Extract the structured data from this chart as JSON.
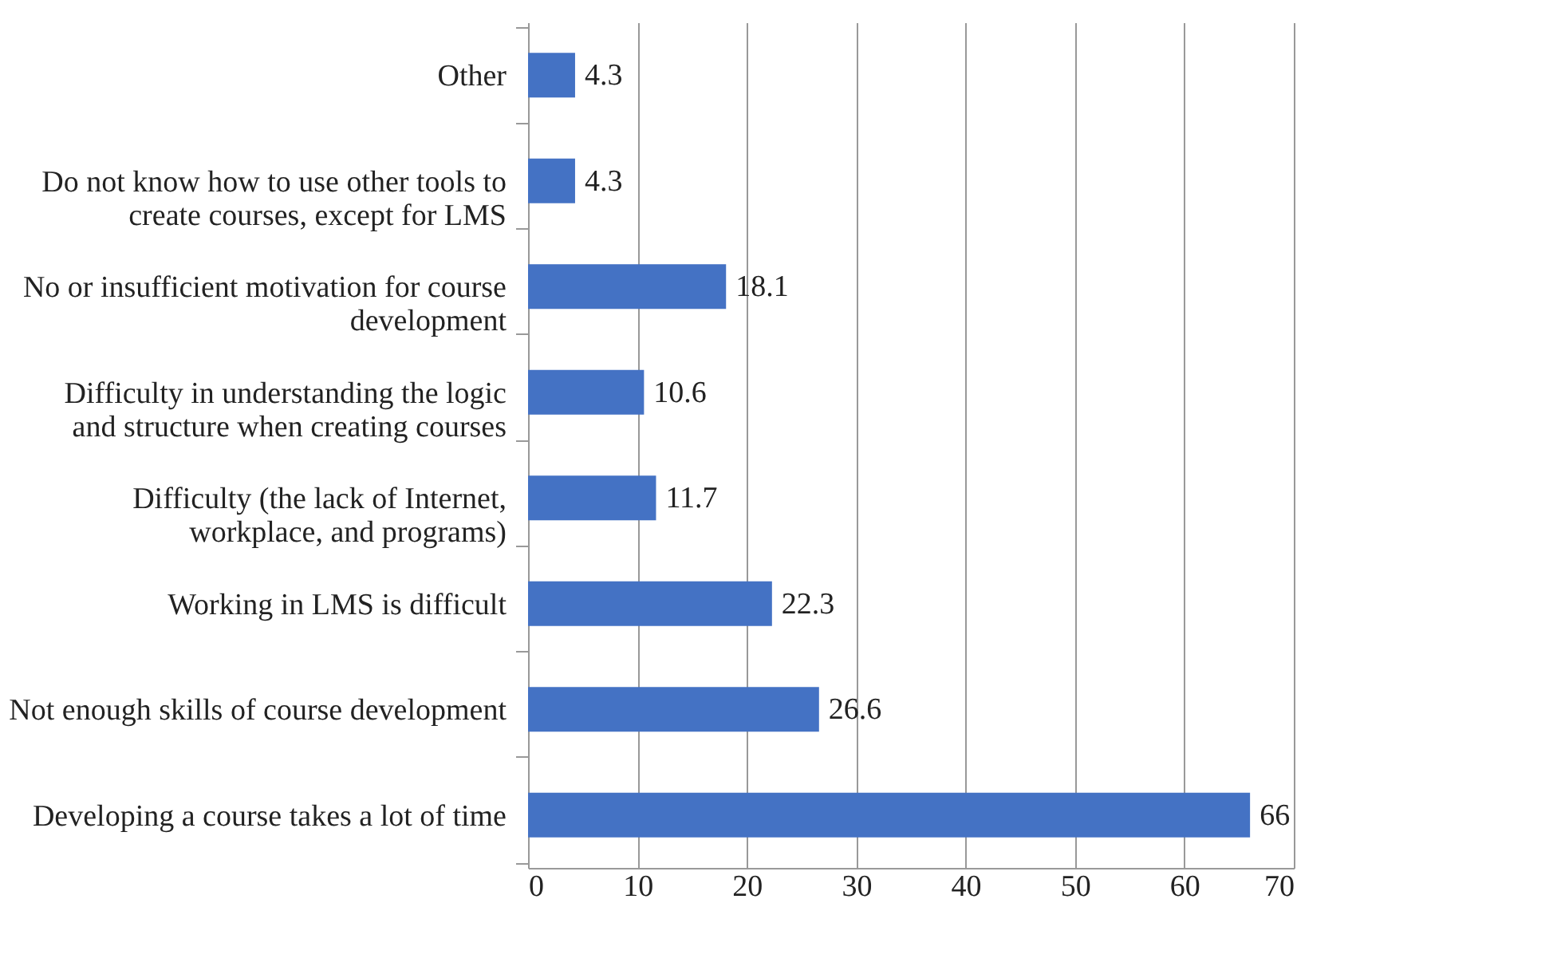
{
  "chart_data": {
    "type": "bar",
    "orientation": "horizontal",
    "categories": [
      "Other",
      "Do not know how to use other tools to create courses, except for LMS",
      "No or insufficient motivation for course development",
      "Difficulty in understanding the logic and structure when creating courses",
      "Difficulty (the lack of Internet, workplace, and programs)",
      "Working in LMS is difficult",
      "Not enough skills of course development",
      "Developing a course takes a lot of time"
    ],
    "values": [
      4.3,
      4.3,
      18.1,
      10.6,
      11.7,
      22.3,
      26.6,
      66
    ],
    "color": "#4472c4",
    "xlim": [
      0,
      70
    ],
    "xticks": [
      0,
      10,
      20,
      30,
      40,
      50,
      60,
      70
    ],
    "grid": "x",
    "data_labels": true
  }
}
